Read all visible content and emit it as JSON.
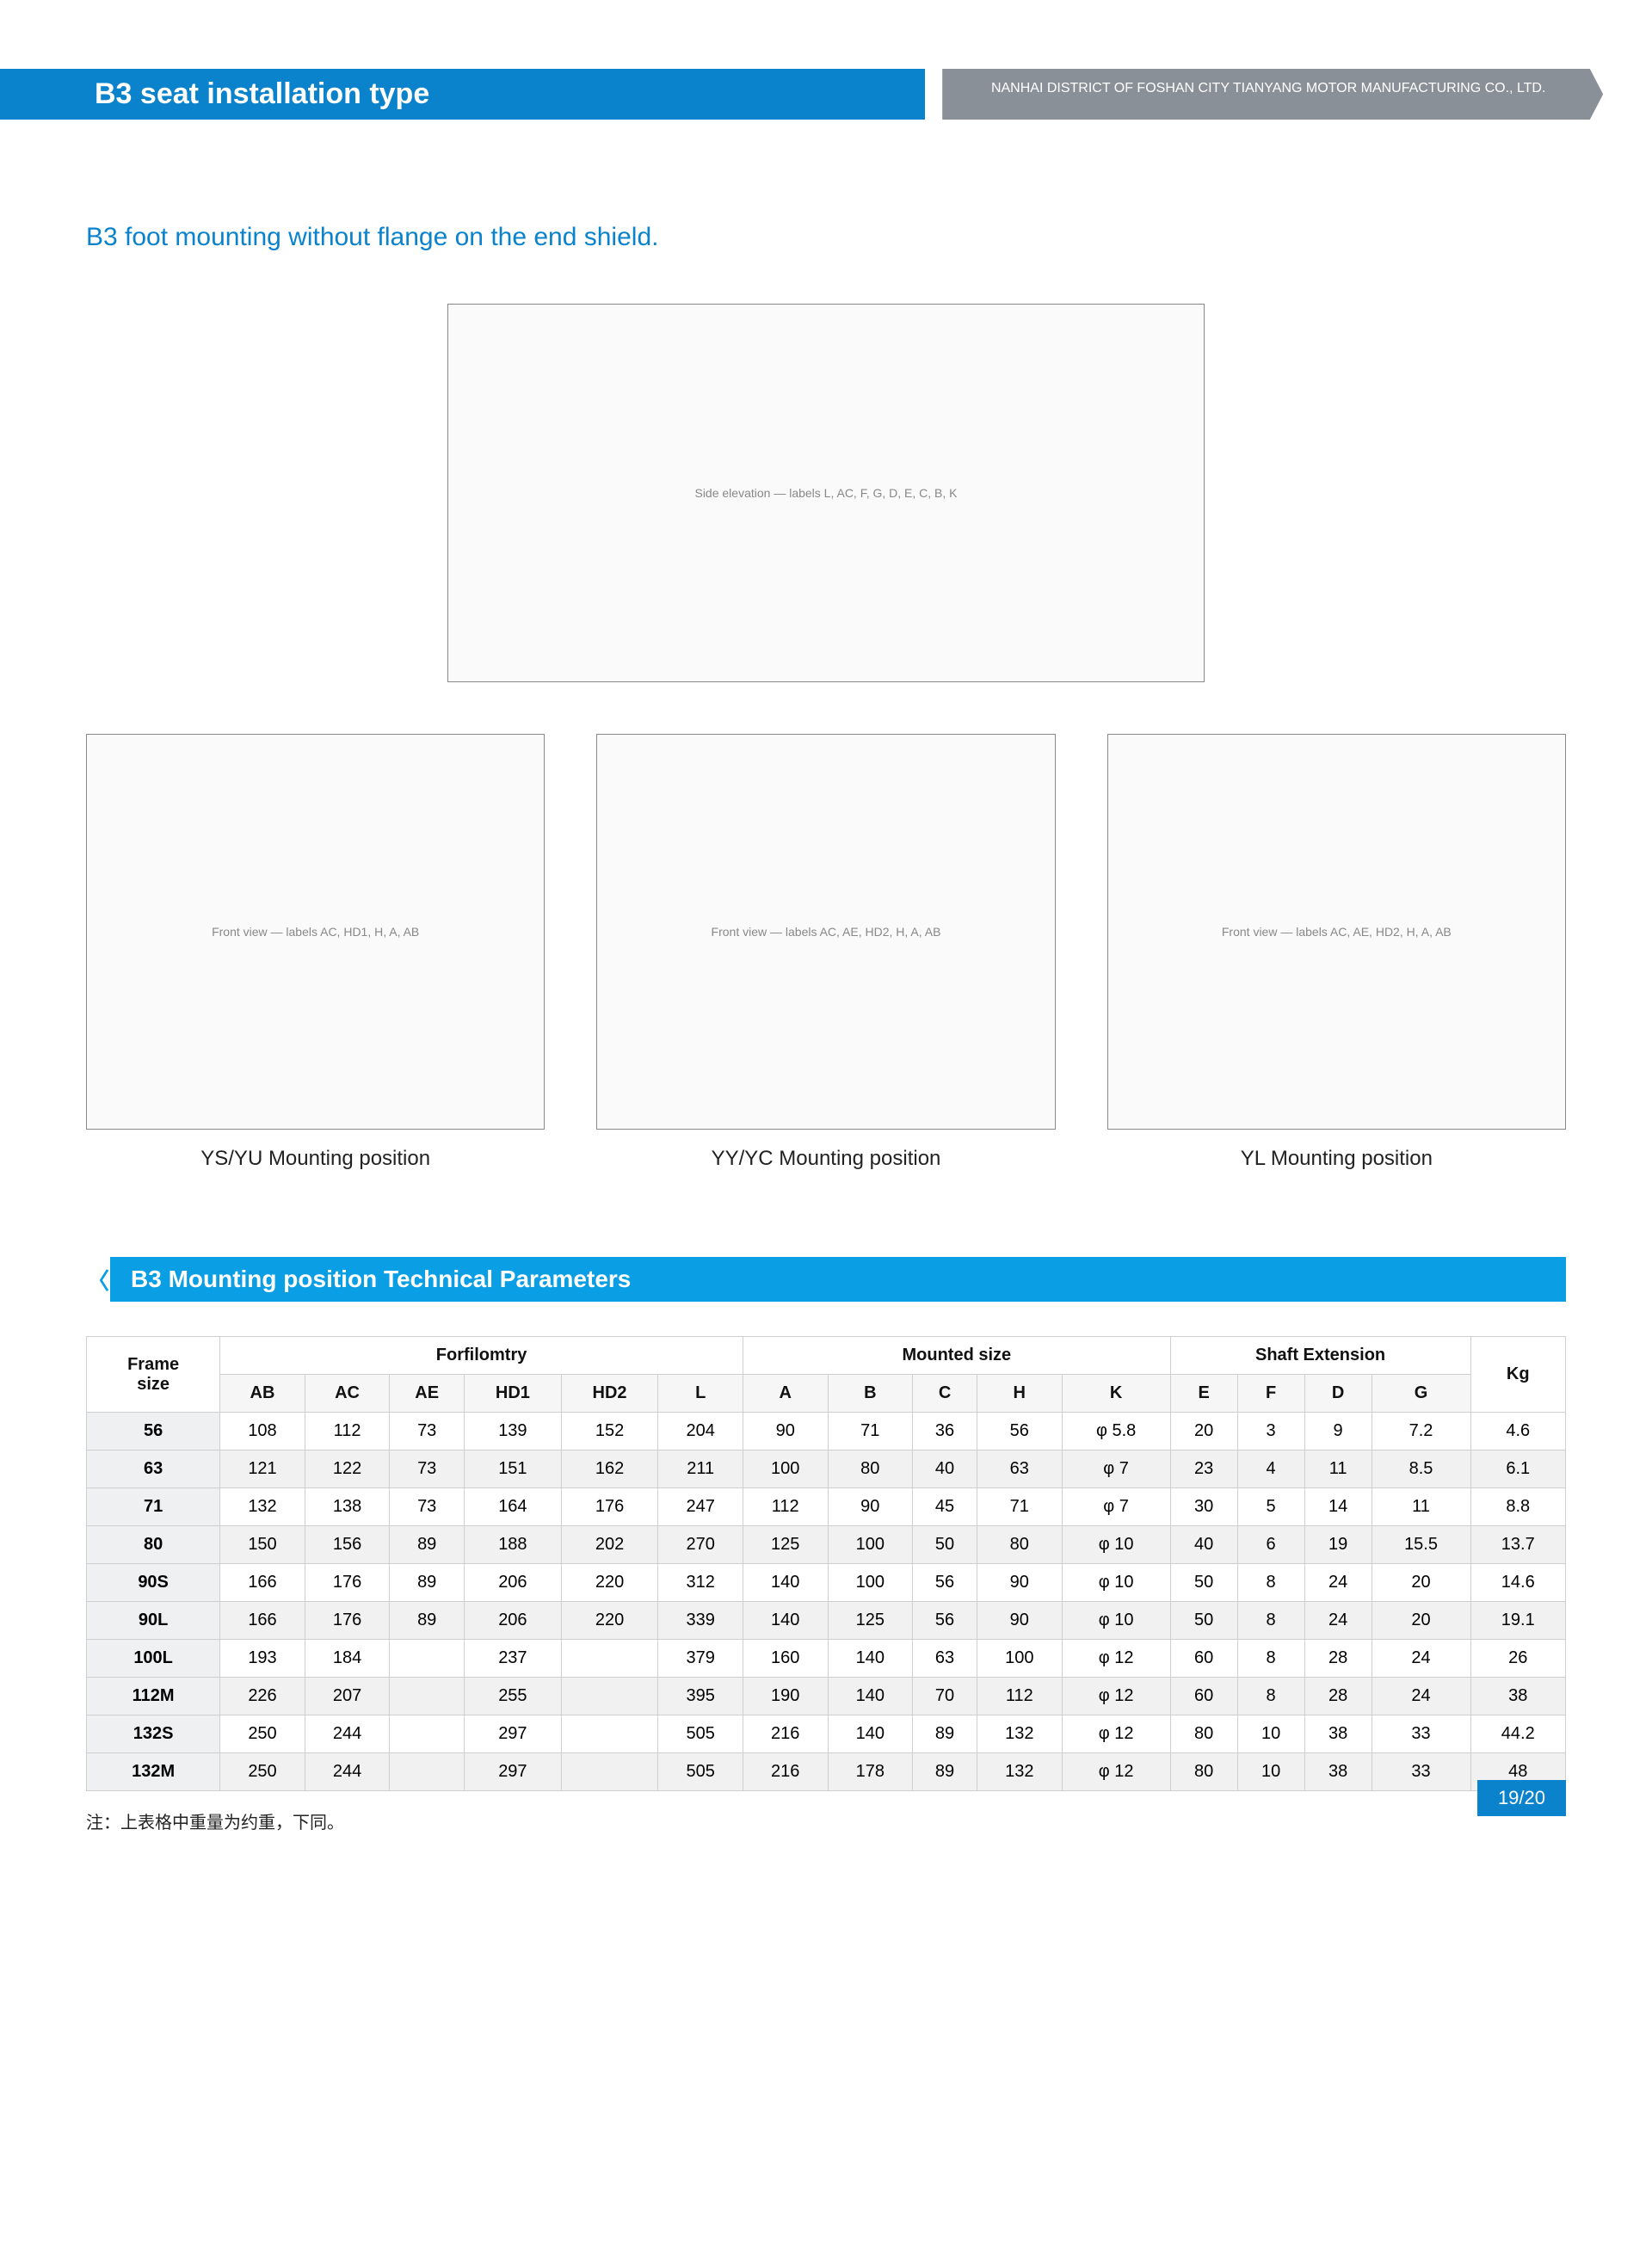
{
  "header": {
    "title_left": "B3 seat installation type",
    "title_right": "NANHAI DISTRICT OF FOSHAN CITY TIANYANG MOTOR MANUFACTURING CO., LTD."
  },
  "subtitle": "B3 foot mounting without flange on the end shield.",
  "diagrams": {
    "main_stub": "Side elevation — labels L, AC, F, G, D, E, C, B, K",
    "views": [
      {
        "stub": "Front view — labels AC, HD1, H, A, AB",
        "caption": "YS/YU Mounting position"
      },
      {
        "stub": "Front view — labels AC, AE, HD2, H, A, AB",
        "caption": "YY/YC Mounting position"
      },
      {
        "stub": "Front view — labels AC, AE, HD2, H, A, AB",
        "caption": "YL Mounting position"
      }
    ]
  },
  "table": {
    "section_title": "B3 Mounting position Technical Parameters",
    "group_headers": {
      "frame": "Frame\nsize",
      "g1": "Forfilomtry",
      "g2": "Mounted size",
      "g3": "Shaft Extension",
      "kg": "Kg"
    },
    "sub_headers": [
      "AB",
      "AC",
      "AE",
      "HD1",
      "HD2",
      "L",
      "A",
      "B",
      "C",
      "H",
      "K",
      "E",
      "F",
      "D",
      "G"
    ],
    "rows": [
      {
        "frame": "56",
        "cells": [
          "108",
          "112",
          "73",
          "139",
          "152",
          "204",
          "90",
          "71",
          "36",
          "56",
          "φ 5.8",
          "20",
          "3",
          "9",
          "7.2",
          "4.6"
        ]
      },
      {
        "frame": "63",
        "cells": [
          "121",
          "122",
          "73",
          "151",
          "162",
          "211",
          "100",
          "80",
          "40",
          "63",
          "φ 7",
          "23",
          "4",
          "11",
          "8.5",
          "6.1"
        ]
      },
      {
        "frame": "71",
        "cells": [
          "132",
          "138",
          "73",
          "164",
          "176",
          "247",
          "112",
          "90",
          "45",
          "71",
          "φ 7",
          "30",
          "5",
          "14",
          "11",
          "8.8"
        ]
      },
      {
        "frame": "80",
        "cells": [
          "150",
          "156",
          "89",
          "188",
          "202",
          "270",
          "125",
          "100",
          "50",
          "80",
          "φ 10",
          "40",
          "6",
          "19",
          "15.5",
          "13.7"
        ]
      },
      {
        "frame": "90S",
        "cells": [
          "166",
          "176",
          "89",
          "206",
          "220",
          "312",
          "140",
          "100",
          "56",
          "90",
          "φ 10",
          "50",
          "8",
          "24",
          "20",
          "14.6"
        ]
      },
      {
        "frame": "90L",
        "cells": [
          "166",
          "176",
          "89",
          "206",
          "220",
          "339",
          "140",
          "125",
          "56",
          "90",
          "φ 10",
          "50",
          "8",
          "24",
          "20",
          "19.1"
        ]
      },
      {
        "frame": "100L",
        "cells": [
          "193",
          "184",
          "",
          "237",
          "",
          "379",
          "160",
          "140",
          "63",
          "100",
          "φ 12",
          "60",
          "8",
          "28",
          "24",
          "26"
        ]
      },
      {
        "frame": "112M",
        "cells": [
          "226",
          "207",
          "",
          "255",
          "",
          "395",
          "190",
          "140",
          "70",
          "112",
          "φ 12",
          "60",
          "8",
          "28",
          "24",
          "38"
        ]
      },
      {
        "frame": "132S",
        "cells": [
          "250",
          "244",
          "",
          "297",
          "",
          "505",
          "216",
          "140",
          "89",
          "132",
          "φ 12",
          "80",
          "10",
          "38",
          "33",
          "44.2"
        ]
      },
      {
        "frame": "132M",
        "cells": [
          "250",
          "244",
          "",
          "297",
          "",
          "505",
          "216",
          "178",
          "89",
          "132",
          "φ 12",
          "80",
          "10",
          "38",
          "33",
          "48"
        ]
      }
    ]
  },
  "note": "注：上表格中重量为约重，下同。",
  "page_number": "19/20",
  "colors": {
    "brand_blue": "#0a82cc",
    "banner_blue": "#0a9ee4",
    "header_gray": "#8a9098",
    "border_gray": "#cfcfcf",
    "row_alt": "#f1f1f1",
    "frame_col_bg": "#eef0f2"
  }
}
